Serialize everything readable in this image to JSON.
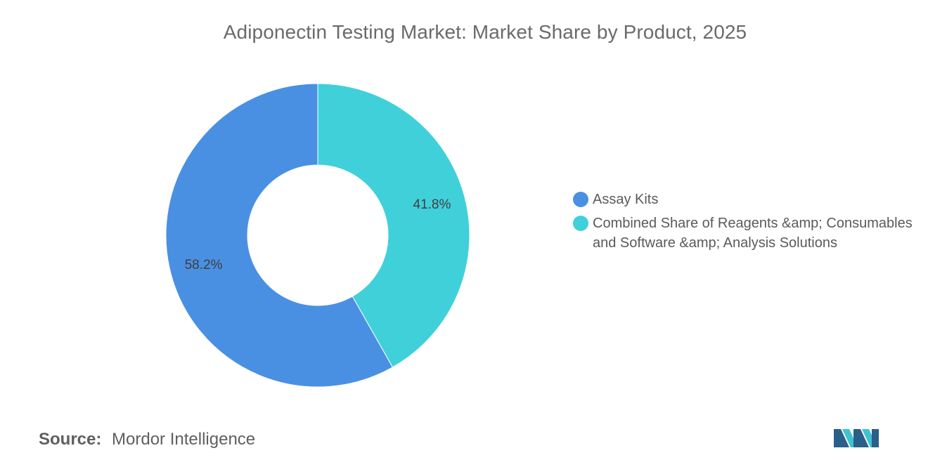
{
  "chart_data": {
    "type": "pie",
    "variant": "donut",
    "title": "Adiponectin Testing Market: Market Share by Product, 2025",
    "slices": [
      {
        "label": "Assay Kits",
        "value": 58.2,
        "value_label": "58.2%",
        "color": "#4a90e2"
      },
      {
        "label": "Combined Share of Reagents &amp; Consumables and Software &amp; Analysis Solutions",
        "legend_lines": [
          "Combined Share of Reagents &amp; Consumables",
          "and Software &amp; Analysis Solutions"
        ],
        "value": 41.8,
        "value_label": "41.8%",
        "color": "#40d0da"
      }
    ],
    "legend_placement": "right"
  },
  "source": {
    "label": "Source:",
    "value": "Mordor Intelligence"
  },
  "logo": {
    "icon": "mordor-intelligence-logo-icon",
    "colors": [
      "#2a5f8a",
      "#3fc3d0"
    ]
  }
}
